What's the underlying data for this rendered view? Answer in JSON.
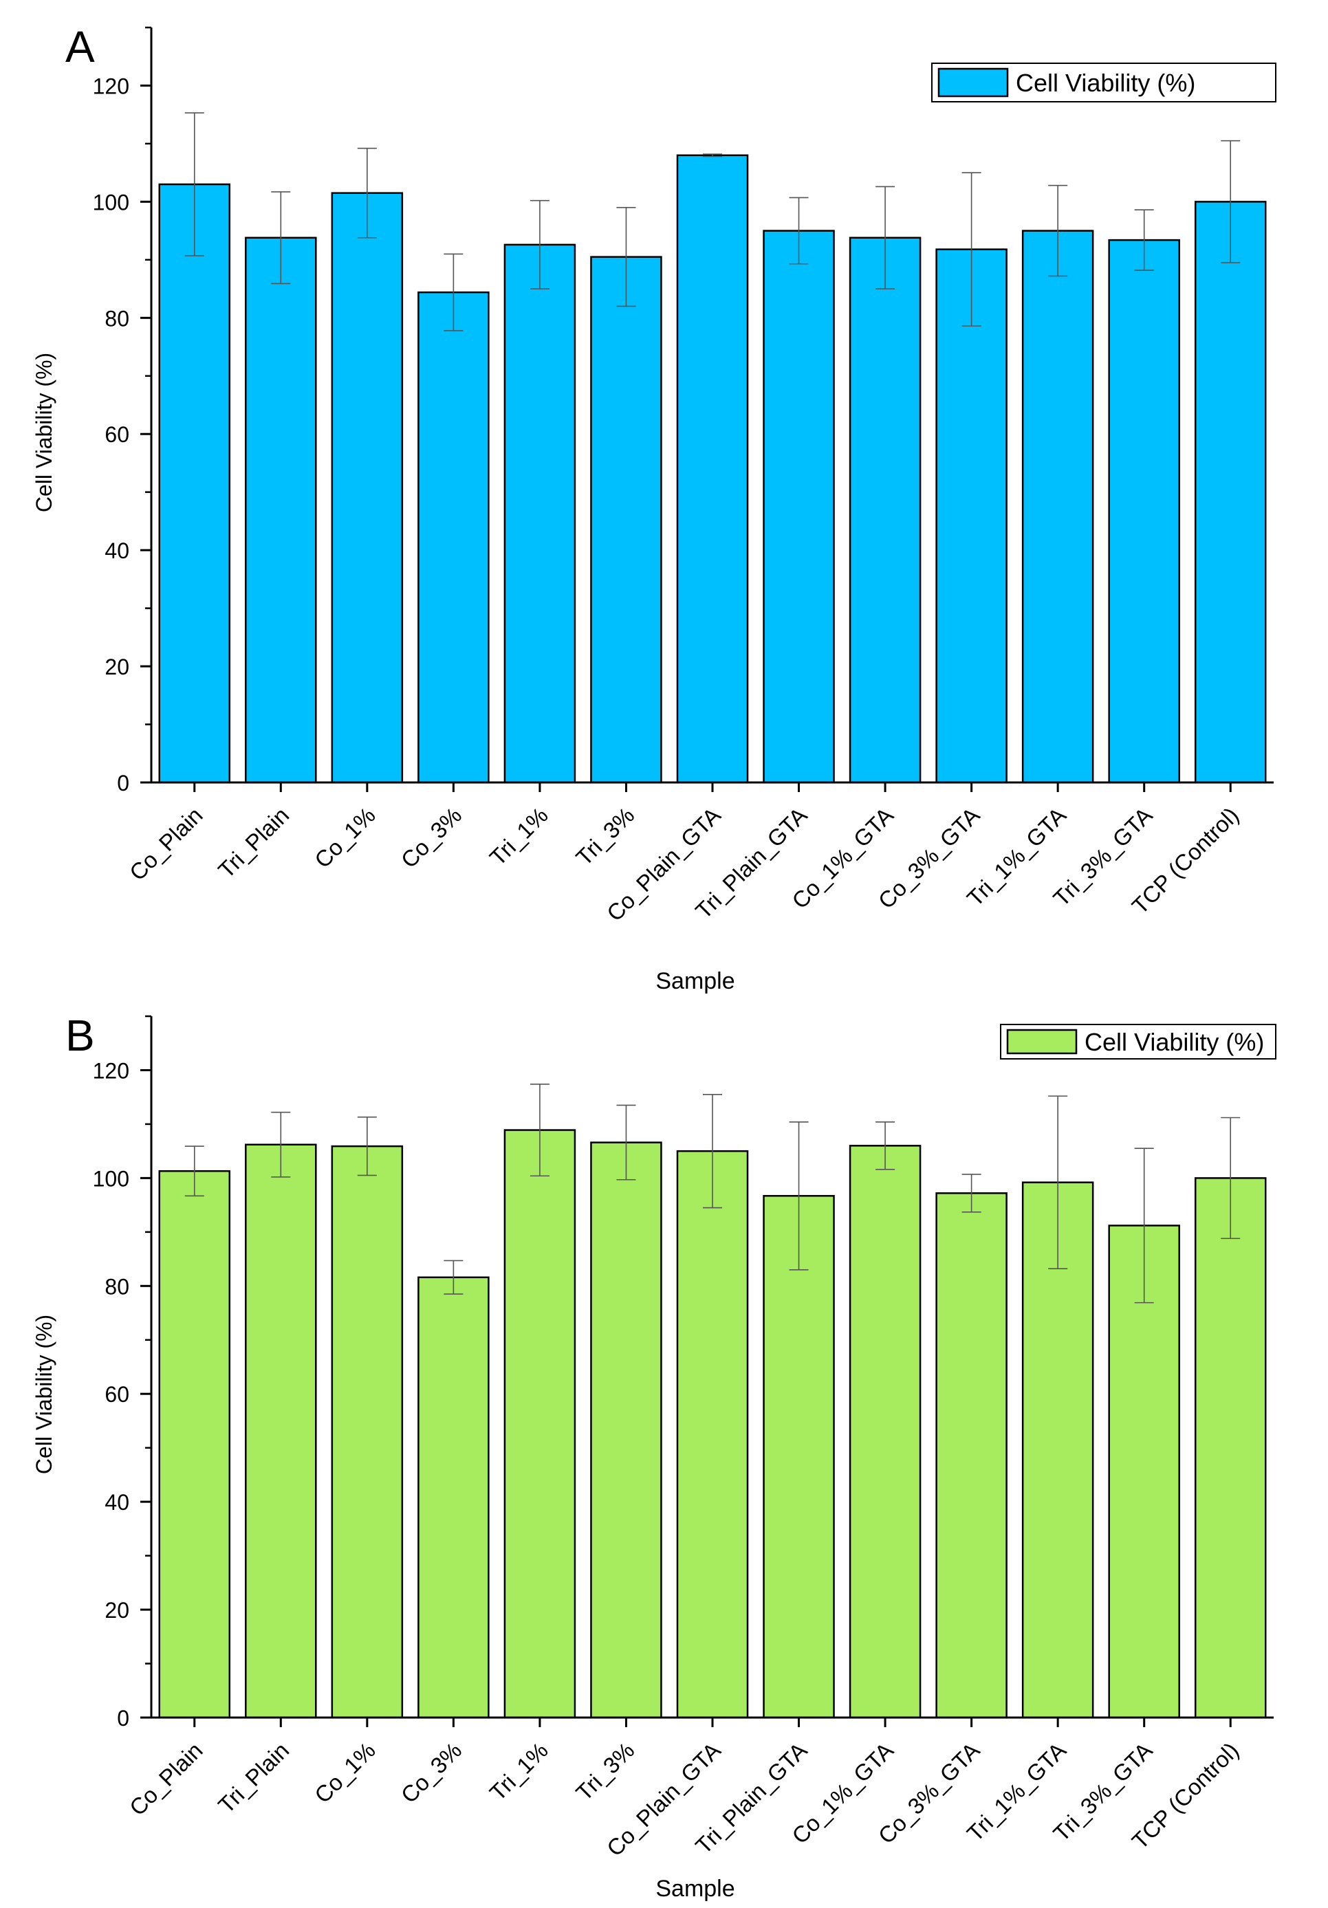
{
  "chart_data": [
    {
      "panel_label": "A",
      "type": "bar",
      "title": "",
      "xlabel": "Sample",
      "ylabel": "Cell Viability (%)",
      "ylim": [
        0,
        130
      ],
      "yticks": [
        0,
        20,
        40,
        60,
        80,
        100,
        120
      ],
      "grid": false,
      "legend_position": "top-right",
      "bar_color": "#00BFFF",
      "categories": [
        "Co_Plain",
        "Tri_Plain",
        "Co_1%",
        "Co_3%",
        "Tri_1%",
        "Tri_3%",
        "Co_Plain_GTA",
        "Tri_Plain_GTA",
        "Co_1%_GTA",
        "Co_3%_GTA",
        "Tri_1%_GTA",
        "Tri_3%_GTA",
        "TCP (Control)"
      ],
      "series": [
        {
          "name": "Cell Viability (%)",
          "values": [
            103.0,
            93.8,
            101.5,
            84.4,
            92.6,
            90.5,
            108.0,
            95.0,
            93.8,
            91.8,
            95.0,
            93.4,
            100.0
          ],
          "errors": [
            12.3,
            7.9,
            7.7,
            6.6,
            7.6,
            8.5,
            0.2,
            5.7,
            8.8,
            13.2,
            7.8,
            5.2,
            10.5
          ]
        }
      ]
    },
    {
      "panel_label": "B",
      "type": "bar",
      "title": "",
      "xlabel": "Sample",
      "ylabel": "Cell Viability (%)",
      "ylim": [
        0,
        130
      ],
      "yticks": [
        0,
        20,
        40,
        60,
        80,
        100,
        120
      ],
      "grid": false,
      "legend_position": "top-right",
      "bar_color": "#A6EC5E",
      "categories": [
        "Co_Plain",
        "Tri_Plain",
        "Co_1%",
        "Co_3%",
        "Tri_1%",
        "Tri_3%",
        "Co_Plain_GTA",
        "Tri_Plain_GTA",
        "Co_1%_GTA",
        "Co_3%_GTA",
        "Tri_1%_GTA",
        "Tri_3%_GTA",
        "TCP (Control)"
      ],
      "series": [
        {
          "name": "Cell Viability (%)",
          "values": [
            101.3,
            106.2,
            105.9,
            81.6,
            108.9,
            106.6,
            105.0,
            96.7,
            106.0,
            97.2,
            99.2,
            91.2,
            100.0
          ],
          "errors": [
            4.6,
            6.0,
            5.4,
            3.1,
            8.5,
            6.9,
            10.5,
            13.7,
            4.4,
            3.5,
            16.0,
            14.3,
            11.2
          ]
        }
      ]
    }
  ]
}
